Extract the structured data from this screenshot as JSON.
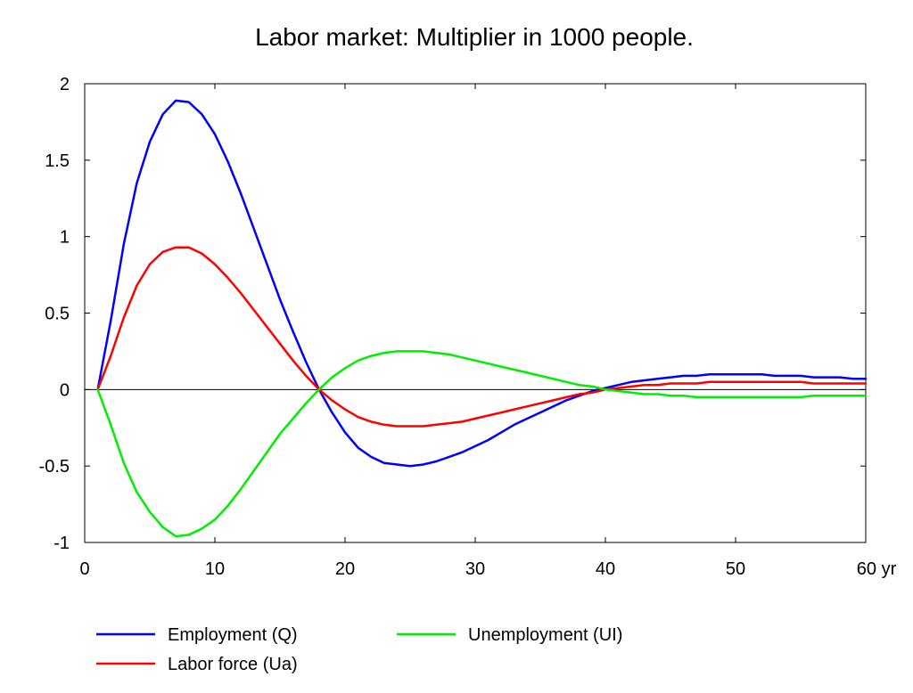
{
  "chart_data": {
    "type": "line",
    "title": "Labor market: Multiplier in 1000 people.",
    "xlabel": "",
    "ylabel": "",
    "xlim": [
      0,
      60
    ],
    "ylim": [
      -1,
      2
    ],
    "x_ticks": [
      0,
      10,
      20,
      30,
      40,
      50,
      60
    ],
    "x_tick_labels": [
      "0",
      "10",
      "20",
      "30",
      "40",
      "50",
      "60 yr"
    ],
    "y_ticks": [
      -1,
      -0.5,
      0,
      0.5,
      1,
      1.5,
      2
    ],
    "y_tick_labels": [
      "-1",
      "-0.5",
      "0",
      "0.5",
      "1",
      "1.5",
      "2"
    ],
    "grid": false,
    "zero_line": true,
    "legend_position": "bottom",
    "x": [
      1,
      2,
      3,
      4,
      5,
      6,
      7,
      8,
      9,
      10,
      11,
      12,
      13,
      14,
      15,
      16,
      17,
      18,
      19,
      20,
      21,
      22,
      23,
      24,
      25,
      26,
      27,
      28,
      29,
      30,
      31,
      32,
      33,
      34,
      35,
      36,
      37,
      38,
      39,
      40,
      41,
      42,
      43,
      44,
      45,
      46,
      47,
      48,
      49,
      50,
      51,
      52,
      53,
      54,
      55,
      56,
      57,
      58,
      59,
      60
    ],
    "series": [
      {
        "name": "Employment (Q)",
        "color": "#0000ff",
        "values": [
          0.0,
          0.45,
          0.95,
          1.35,
          1.62,
          1.8,
          1.89,
          1.88,
          1.8,
          1.67,
          1.49,
          1.28,
          1.05,
          0.82,
          0.59,
          0.38,
          0.18,
          0.0,
          -0.15,
          -0.28,
          -0.38,
          -0.44,
          -0.48,
          -0.49,
          -0.5,
          -0.49,
          -0.47,
          -0.44,
          -0.41,
          -0.37,
          -0.33,
          -0.28,
          -0.23,
          -0.19,
          -0.15,
          -0.11,
          -0.07,
          -0.04,
          -0.01,
          0.01,
          0.03,
          0.05,
          0.06,
          0.07,
          0.08,
          0.09,
          0.09,
          0.1,
          0.1,
          0.1,
          0.1,
          0.1,
          0.09,
          0.09,
          0.09,
          0.08,
          0.08,
          0.08,
          0.07,
          0.07
        ]
      },
      {
        "name": "Labor force (Ua)",
        "color": "#ff0000",
        "values": [
          0.0,
          0.22,
          0.47,
          0.68,
          0.82,
          0.9,
          0.93,
          0.93,
          0.89,
          0.82,
          0.73,
          0.63,
          0.52,
          0.41,
          0.3,
          0.19,
          0.09,
          0.0,
          -0.07,
          -0.13,
          -0.18,
          -0.21,
          -0.23,
          -0.24,
          -0.24,
          -0.24,
          -0.23,
          -0.22,
          -0.21,
          -0.19,
          -0.17,
          -0.15,
          -0.13,
          -0.11,
          -0.09,
          -0.07,
          -0.05,
          -0.03,
          -0.02,
          -0.0,
          0.01,
          0.02,
          0.03,
          0.03,
          0.04,
          0.04,
          0.04,
          0.05,
          0.05,
          0.05,
          0.05,
          0.05,
          0.05,
          0.05,
          0.05,
          0.04,
          0.04,
          0.04,
          0.04,
          0.04
        ]
      },
      {
        "name": "Unemployment (UI)",
        "color": "#00ee00",
        "values": [
          0.0,
          -0.23,
          -0.48,
          -0.67,
          -0.8,
          -0.9,
          -0.96,
          -0.95,
          -0.91,
          -0.85,
          -0.76,
          -0.65,
          -0.53,
          -0.41,
          -0.29,
          -0.19,
          -0.09,
          0.0,
          0.08,
          0.14,
          0.19,
          0.22,
          0.24,
          0.25,
          0.25,
          0.25,
          0.24,
          0.23,
          0.21,
          0.19,
          0.17,
          0.15,
          0.13,
          0.11,
          0.09,
          0.07,
          0.05,
          0.03,
          0.02,
          0.0,
          -0.01,
          -0.02,
          -0.03,
          -0.03,
          -0.04,
          -0.04,
          -0.05,
          -0.05,
          -0.05,
          -0.05,
          -0.05,
          -0.05,
          -0.05,
          -0.05,
          -0.05,
          -0.04,
          -0.04,
          -0.04,
          -0.04,
          -0.04
        ]
      }
    ]
  }
}
